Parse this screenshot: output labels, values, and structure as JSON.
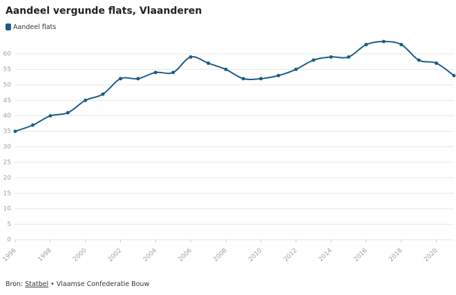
{
  "chart_data": {
    "type": "line",
    "title": "Aandeel vergunde flats, Vlaanderen",
    "x": [
      1996,
      1997,
      1998,
      1999,
      2000,
      2001,
      2002,
      2003,
      2004,
      2005,
      2006,
      2007,
      2008,
      2009,
      2010,
      2011,
      2012,
      2013,
      2014,
      2015,
      2016,
      2017,
      2018,
      2019,
      2020,
      2021
    ],
    "series": [
      {
        "name": "Aandeel flats",
        "color": "#195b87",
        "values": [
          35,
          37,
          40,
          41,
          45,
          47,
          52,
          52,
          54,
          54,
          59,
          57,
          55,
          52,
          52,
          53,
          55,
          58,
          59,
          59,
          63,
          64,
          63,
          58,
          57,
          53
        ]
      }
    ],
    "xlim": [
      1996,
      2021
    ],
    "xticks": [
      1996,
      1998,
      2000,
      2002,
      2004,
      2006,
      2008,
      2010,
      2012,
      2014,
      2016,
      2018,
      2020
    ],
    "ylim": [
      0,
      65
    ],
    "yticks": [
      0,
      5,
      10,
      15,
      20,
      25,
      30,
      35,
      40,
      45,
      50,
      55,
      60
    ],
    "grid": true
  },
  "footer": {
    "label": "Bron:",
    "link": "Statbel",
    "text": "• Vlaamse Confederatie Bouw"
  }
}
